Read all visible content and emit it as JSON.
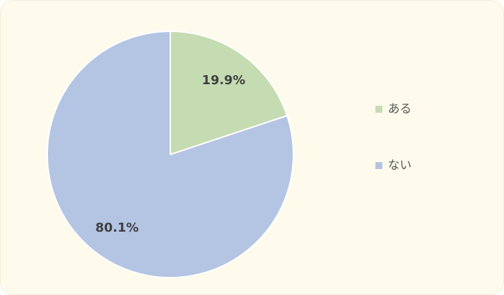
{
  "chart_data": {
    "type": "pie",
    "categories": [
      "ある",
      "ない"
    ],
    "values": [
      19.9,
      80.1
    ],
    "value_labels": [
      "19.9%",
      "80.1%"
    ],
    "colors": [
      "#c5dbb2",
      "#b4c4e3"
    ],
    "legend": "right"
  }
}
